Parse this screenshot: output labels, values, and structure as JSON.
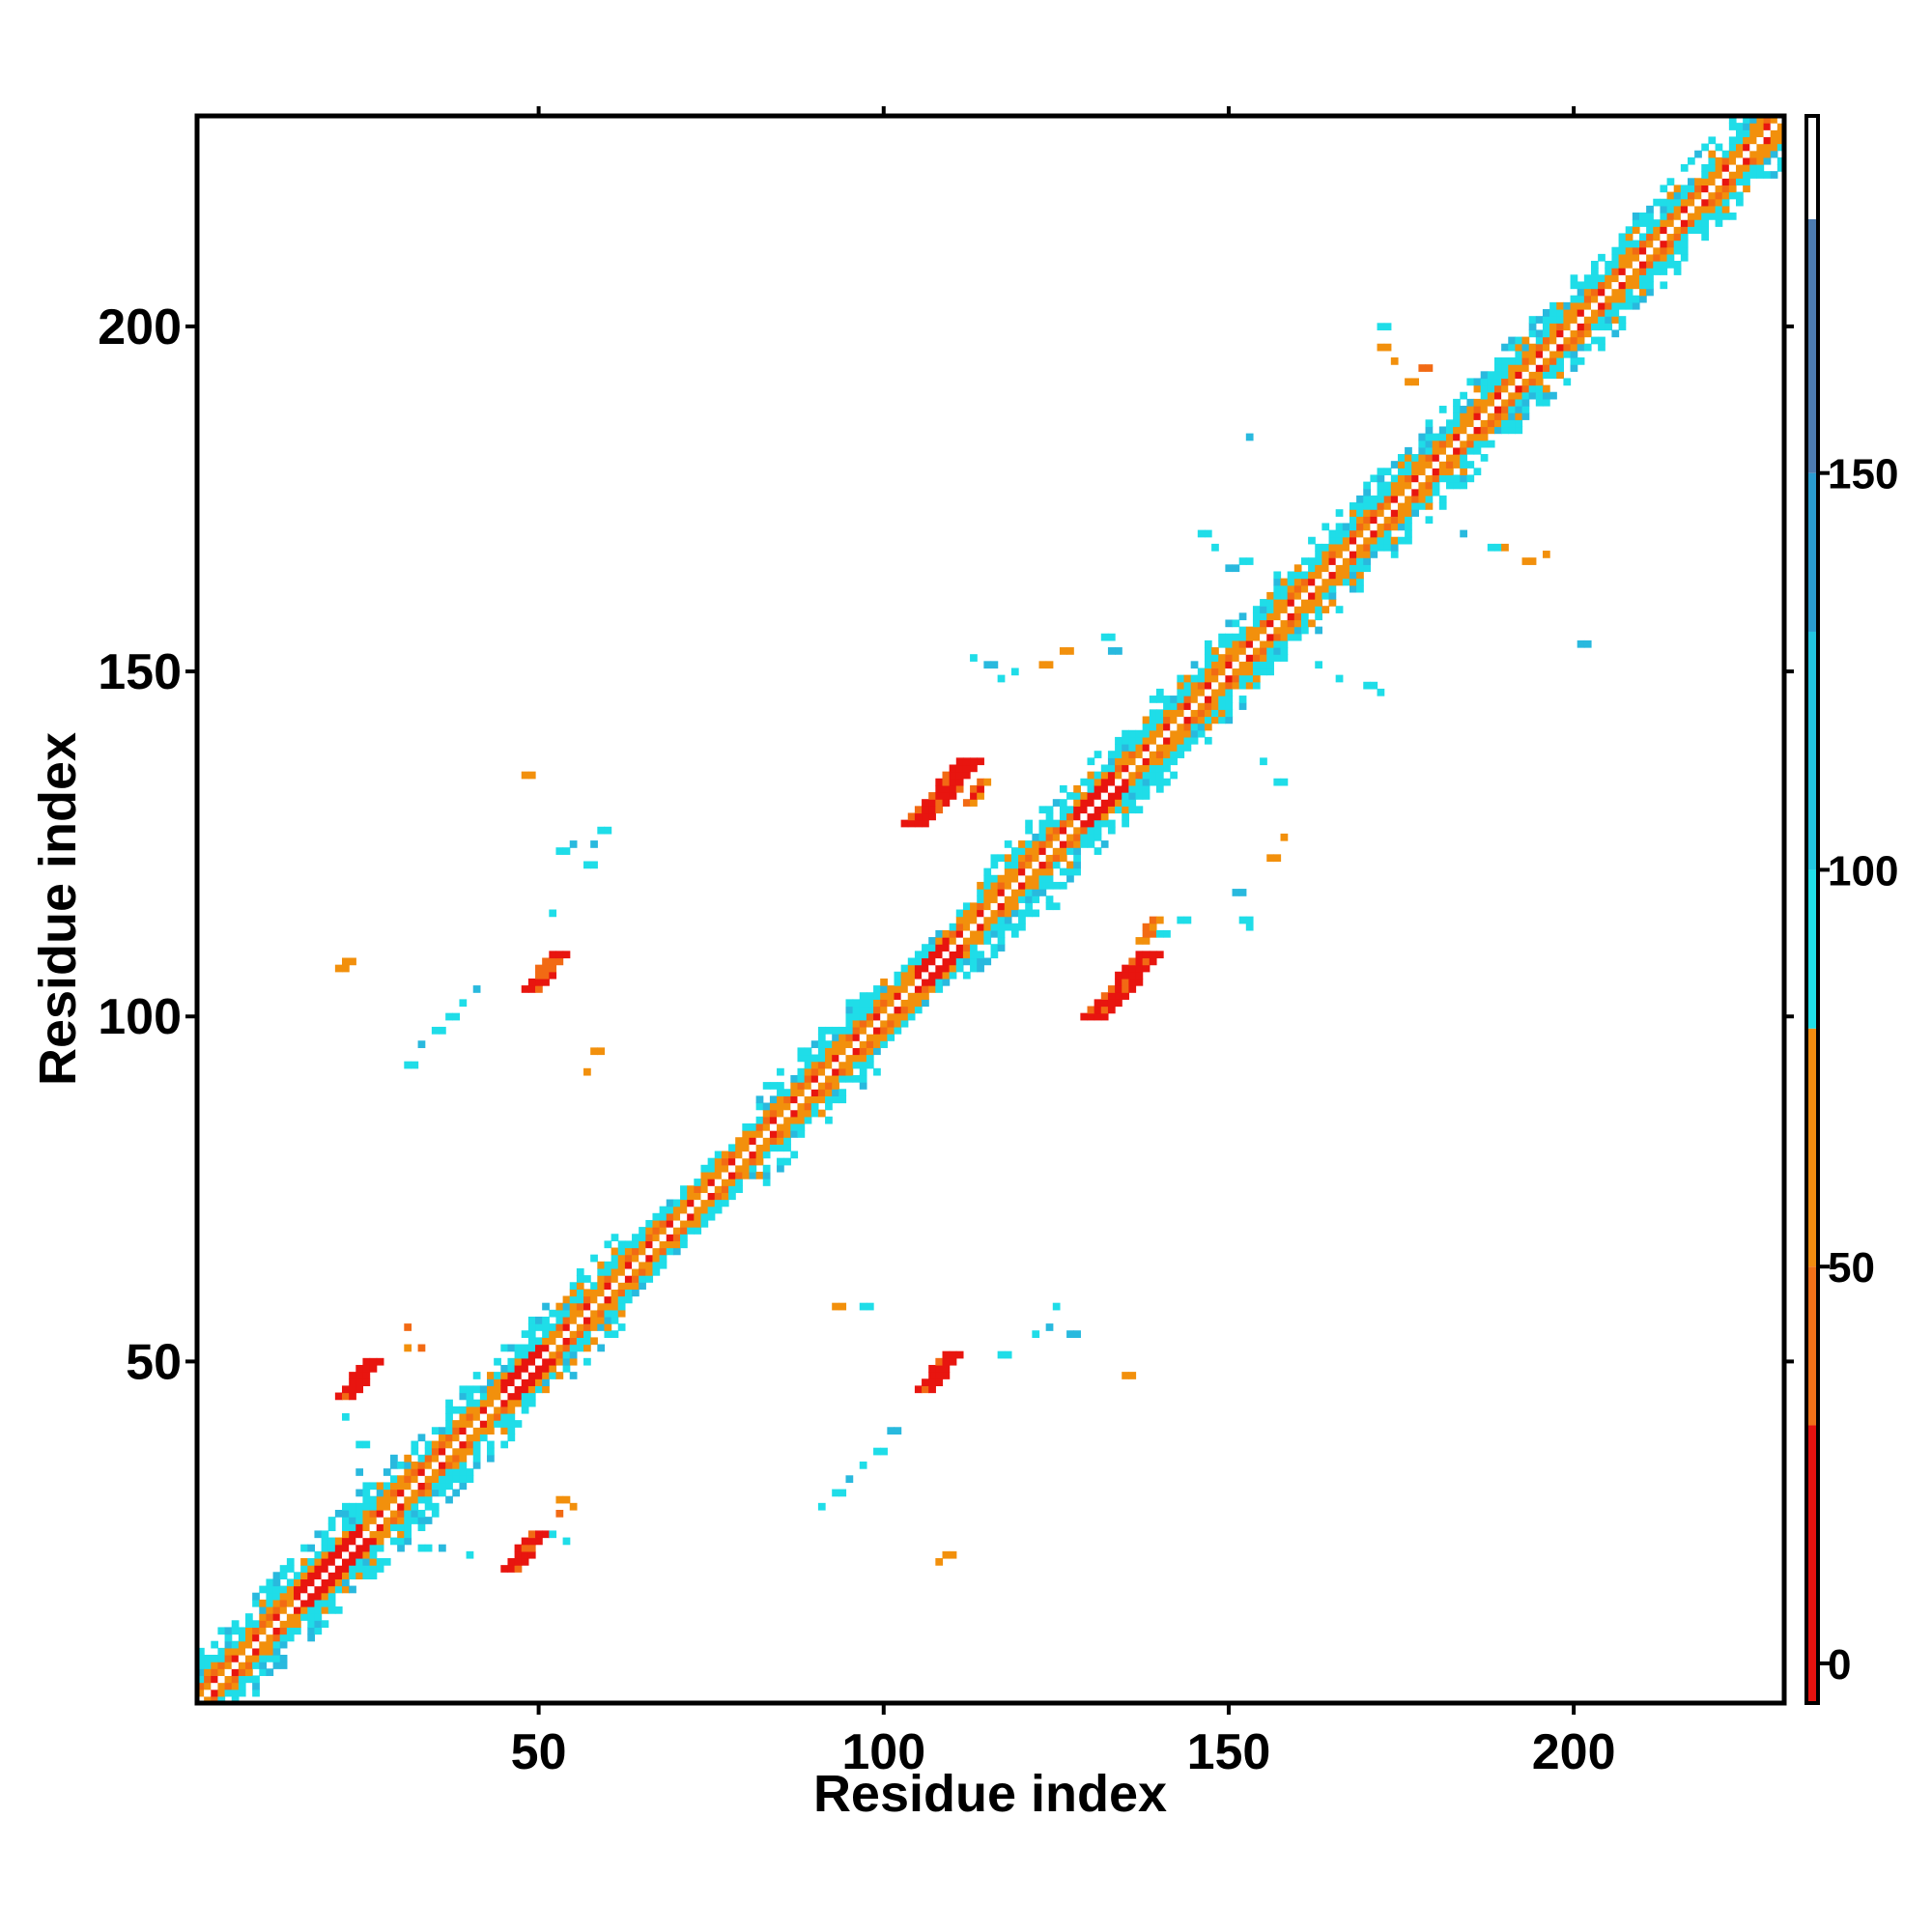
{
  "chart_data": {
    "type": "heatmap",
    "xlabel": "Residue index",
    "ylabel": "Residue index",
    "xlim": [
      1,
      230
    ],
    "ylim": [
      1,
      230
    ],
    "xticks": [
      50,
      100,
      150,
      200
    ],
    "yticks": [
      50,
      100,
      150,
      200
    ],
    "grid": false,
    "colorbar": {
      "ticks": [
        0,
        50,
        100,
        150
      ],
      "range": [
        -5,
        195
      ],
      "bands": [
        {
          "from": -5,
          "to": 30,
          "color": "#e5120f"
        },
        {
          "from": 30,
          "to": 50,
          "color": "#f07018"
        },
        {
          "from": 50,
          "to": 80,
          "color": "#f08c10"
        },
        {
          "from": 80,
          "to": 100,
          "color": "#20e0e8"
        },
        {
          "from": 100,
          "to": 130,
          "color": "#22c4e0"
        },
        {
          "from": 130,
          "to": 150,
          "color": "#2a9cd0"
        },
        {
          "from": 150,
          "to": 182,
          "color": "#4d7cb0"
        },
        {
          "from": 182,
          "to": 195,
          "color": "#ffffff"
        }
      ]
    },
    "colors": {
      "red": "#e8150f",
      "orange_red": "#f26a14",
      "orange": "#f2900c",
      "cyan": "#1fdde8",
      "light_blue": "#29b9de",
      "steel_blue": "#3a8cc8"
    },
    "diagonal_band": {
      "from": 1,
      "to": 230,
      "half_width_residues": 7
    },
    "regions": [
      {
        "name": "helix-pair-1",
        "x": [
          21,
          26
        ],
        "y": [
          46,
          51
        ],
        "class": "red"
      },
      {
        "name": "helix-pair-2",
        "x": [
          46,
          51
        ],
        "y": [
          21,
          26
        ],
        "class": "red"
      },
      {
        "name": "sheet-1",
        "x": [
          105,
          112
        ],
        "y": [
          128,
          138
        ],
        "class": "red"
      },
      {
        "name": "sheet-2",
        "x": [
          130,
          140
        ],
        "y": [
          100,
          112
        ],
        "class": "red"
      },
      {
        "name": "contact-3",
        "x": [
          48,
          53
        ],
        "y": [
          104,
          110
        ],
        "class": "red"
      },
      {
        "name": "contact-4",
        "x": [
          104,
          110
        ],
        "y": [
          46,
          52
        ],
        "class": "red"
      }
    ]
  }
}
